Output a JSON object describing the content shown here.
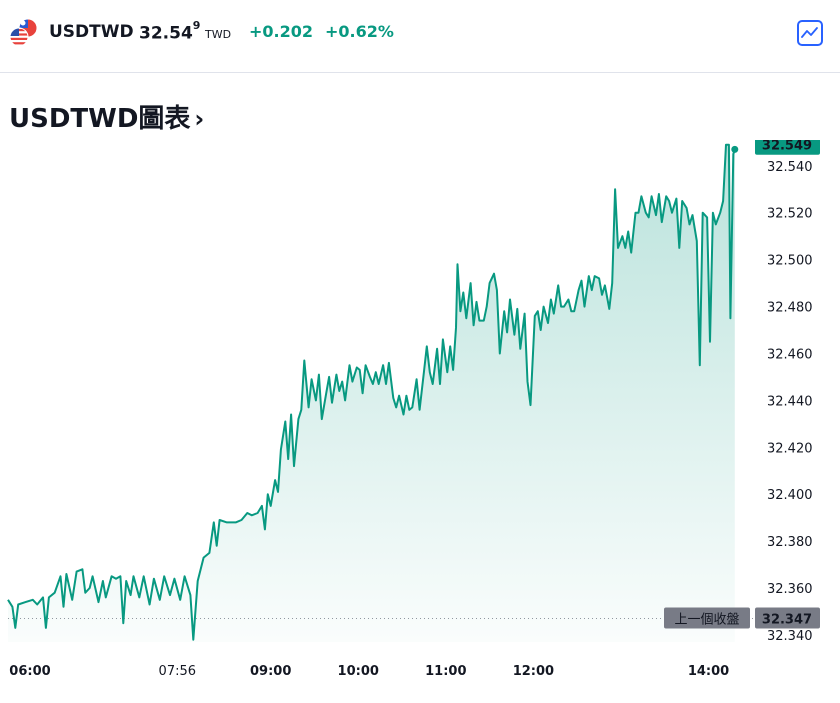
{
  "header": {
    "symbol": "USDTWD",
    "price_main": "32.54",
    "price_small": "9",
    "currency": "TWD",
    "change": "+0.202",
    "change_pct": "+0.62%",
    "chart_button_icon": "line-chart-icon",
    "flag_icon": "us-tw-flag-icon"
  },
  "section": {
    "title": "USDTWD圖表",
    "chevron": "›"
  },
  "colors": {
    "line": "#089981",
    "up": "#089981",
    "prev_close_label_bg": "#787b86",
    "accent": "#2962ff"
  },
  "chart_data": {
    "type": "area",
    "x_labels": [
      "06:00",
      "07:56",
      "09:00",
      "10:00",
      "11:00",
      "12:00",
      "14:00"
    ],
    "y_ticks": [
      32.34,
      32.36,
      32.38,
      32.4,
      32.42,
      32.44,
      32.46,
      32.48,
      32.5,
      32.52,
      32.54
    ],
    "ylim": [
      32.337,
      32.551
    ],
    "xlim": [
      "06:00",
      "14:25"
    ],
    "last_price": 32.549,
    "last_price_label": "32.549",
    "previous_close": 32.347,
    "previous_close_label": "上一個收盤",
    "previous_close_value_label": "32.347",
    "series": [
      {
        "points": [
          [
            "06:00",
            32.355
          ],
          [
            "06:03",
            32.352
          ],
          [
            "06:05",
            32.343
          ],
          [
            "06:07",
            32.353
          ],
          [
            "06:12",
            32.354
          ],
          [
            "06:17",
            32.355
          ],
          [
            "06:20",
            32.353
          ],
          [
            "06:24",
            32.356
          ],
          [
            "06:26",
            32.343
          ],
          [
            "06:28",
            32.356
          ],
          [
            "06:32",
            32.358
          ],
          [
            "06:36",
            32.365
          ],
          [
            "06:38",
            32.352
          ],
          [
            "06:40",
            32.366
          ],
          [
            "06:44",
            32.355
          ],
          [
            "06:47",
            32.367
          ],
          [
            "06:51",
            32.368
          ],
          [
            "06:53",
            32.358
          ],
          [
            "06:56",
            32.36
          ],
          [
            "06:58",
            32.365
          ],
          [
            "07:02",
            32.354
          ],
          [
            "07:05",
            32.363
          ],
          [
            "07:07",
            32.356
          ],
          [
            "07:11",
            32.365
          ],
          [
            "07:14",
            32.364
          ],
          [
            "07:17",
            32.365
          ],
          [
            "07:19",
            32.345
          ],
          [
            "07:21",
            32.363
          ],
          [
            "07:24",
            32.357
          ],
          [
            "07:26",
            32.365
          ],
          [
            "07:30",
            32.356
          ],
          [
            "07:33",
            32.365
          ],
          [
            "07:37",
            32.353
          ],
          [
            "07:40",
            32.364
          ],
          [
            "07:44",
            32.355
          ],
          [
            "07:47",
            32.365
          ],
          [
            "07:51",
            32.357
          ],
          [
            "07:54",
            32.364
          ],
          [
            "07:58",
            32.355
          ],
          [
            "08:01",
            32.365
          ],
          [
            "08:05",
            32.357
          ],
          [
            "08:07",
            32.338
          ],
          [
            "08:10",
            32.363
          ],
          [
            "08:14",
            32.373
          ],
          [
            "08:18",
            32.375
          ],
          [
            "08:21",
            32.388
          ],
          [
            "08:23",
            32.378
          ],
          [
            "08:25",
            32.389
          ],
          [
            "08:30",
            32.388
          ],
          [
            "08:36",
            32.388
          ],
          [
            "08:40",
            32.389
          ],
          [
            "08:44",
            32.392
          ],
          [
            "08:47",
            32.391
          ],
          [
            "08:51",
            32.392
          ],
          [
            "08:54",
            32.395
          ],
          [
            "08:56",
            32.385
          ],
          [
            "08:58",
            32.4
          ],
          [
            "09:00",
            32.395
          ],
          [
            "09:03",
            32.406
          ],
          [
            "09:05",
            32.401
          ],
          [
            "09:07",
            32.419
          ],
          [
            "09:10",
            32.431
          ],
          [
            "09:12",
            32.415
          ],
          [
            "09:14",
            32.434
          ],
          [
            "09:16",
            32.412
          ],
          [
            "09:19",
            32.432
          ],
          [
            "09:21",
            32.436
          ],
          [
            "09:23",
            32.457
          ],
          [
            "09:26",
            32.437
          ],
          [
            "09:28",
            32.449
          ],
          [
            "09:31",
            32.44
          ],
          [
            "09:33",
            32.451
          ],
          [
            "09:35",
            32.432
          ],
          [
            "09:38",
            32.443
          ],
          [
            "09:40",
            32.45
          ],
          [
            "09:42",
            32.439
          ],
          [
            "09:45",
            32.451
          ],
          [
            "09:47",
            32.444
          ],
          [
            "09:49",
            32.448
          ],
          [
            "09:51",
            32.44
          ],
          [
            "09:54",
            32.455
          ],
          [
            "09:56",
            32.448
          ],
          [
            "09:59",
            32.454
          ],
          [
            "10:01",
            32.453
          ],
          [
            "10:03",
            32.443
          ],
          [
            "10:05",
            32.455
          ],
          [
            "10:08",
            32.45
          ],
          [
            "10:10",
            32.447
          ],
          [
            "10:12",
            32.452
          ],
          [
            "10:14",
            32.447
          ],
          [
            "10:17",
            32.455
          ],
          [
            "10:19",
            32.447
          ],
          [
            "10:21",
            32.456
          ],
          [
            "10:24",
            32.441
          ],
          [
            "10:26",
            32.437
          ],
          [
            "10:28",
            32.442
          ],
          [
            "10:31",
            32.434
          ],
          [
            "10:33",
            32.442
          ],
          [
            "10:35",
            32.436
          ],
          [
            "10:37",
            32.437
          ],
          [
            "10:40",
            32.449
          ],
          [
            "10:42",
            32.436
          ],
          [
            "10:45",
            32.452
          ],
          [
            "10:47",
            32.463
          ],
          [
            "10:49",
            32.452
          ],
          [
            "10:51",
            32.447
          ],
          [
            "10:54",
            32.462
          ],
          [
            "10:56",
            32.447
          ],
          [
            "10:58",
            32.466
          ],
          [
            "11:01",
            32.452
          ],
          [
            "11:03",
            32.463
          ],
          [
            "11:05",
            32.453
          ],
          [
            "11:07",
            32.471
          ],
          [
            "11:08",
            32.498
          ],
          [
            "11:10",
            32.478
          ],
          [
            "11:12",
            32.486
          ],
          [
            "11:14",
            32.475
          ],
          [
            "11:17",
            32.49
          ],
          [
            "11:19",
            32.472
          ],
          [
            "11:21",
            32.482
          ],
          [
            "11:23",
            32.474
          ],
          [
            "11:26",
            32.474
          ],
          [
            "11:28",
            32.48
          ],
          [
            "11:30",
            32.49
          ],
          [
            "11:33",
            32.494
          ],
          [
            "11:35",
            32.487
          ],
          [
            "11:37",
            32.46
          ],
          [
            "11:40",
            32.478
          ],
          [
            "11:42",
            32.469
          ],
          [
            "11:44",
            32.483
          ],
          [
            "11:47",
            32.468
          ],
          [
            "11:49",
            32.479
          ],
          [
            "11:51",
            32.462
          ],
          [
            "11:54",
            32.477
          ],
          [
            "11:56",
            32.448
          ],
          [
            "11:58",
            32.438
          ],
          [
            "12:01",
            32.476
          ],
          [
            "12:03",
            32.478
          ],
          [
            "12:05",
            32.47
          ],
          [
            "12:07",
            32.48
          ],
          [
            "12:10",
            32.473
          ],
          [
            "12:12",
            32.483
          ],
          [
            "12:14",
            32.477
          ],
          [
            "12:17",
            32.489
          ],
          [
            "12:19",
            32.48
          ],
          [
            "12:21",
            32.48
          ],
          [
            "12:24",
            32.483
          ],
          [
            "12:26",
            32.478
          ],
          [
            "12:28",
            32.478
          ],
          [
            "12:31",
            32.487
          ],
          [
            "12:33",
            32.491
          ],
          [
            "12:35",
            32.48
          ],
          [
            "12:38",
            32.493
          ],
          [
            "12:40",
            32.487
          ],
          [
            "12:42",
            32.493
          ],
          [
            "12:45",
            32.492
          ],
          [
            "12:47",
            32.485
          ],
          [
            "12:49",
            32.489
          ],
          [
            "12:52",
            32.479
          ],
          [
            "12:54",
            32.49
          ],
          [
            "12:56",
            32.53
          ],
          [
            "12:58",
            32.505
          ],
          [
            "13:01",
            32.51
          ],
          [
            "13:03",
            32.505
          ],
          [
            "13:05",
            32.512
          ],
          [
            "13:07",
            32.503
          ],
          [
            "13:10",
            32.52
          ],
          [
            "13:12",
            32.52
          ],
          [
            "13:14",
            32.527
          ],
          [
            "13:17",
            32.52
          ],
          [
            "13:19",
            32.518
          ],
          [
            "13:21",
            32.527
          ],
          [
            "13:24",
            32.519
          ],
          [
            "13:26",
            32.528
          ],
          [
            "13:28",
            32.516
          ],
          [
            "13:31",
            32.527
          ],
          [
            "13:33",
            32.525
          ],
          [
            "13:35",
            32.52
          ],
          [
            "13:38",
            32.526
          ],
          [
            "13:40",
            32.505
          ],
          [
            "13:42",
            32.525
          ],
          [
            "13:45",
            32.522
          ],
          [
            "13:47",
            32.515
          ],
          [
            "13:49",
            32.519
          ],
          [
            "13:52",
            32.508
          ],
          [
            "13:54",
            32.455
          ],
          [
            "13:56",
            32.52
          ],
          [
            "13:59",
            32.518
          ],
          [
            "14:01",
            32.465
          ],
          [
            "14:03",
            32.52
          ],
          [
            "14:05",
            32.515
          ],
          [
            "14:08",
            32.52
          ],
          [
            "14:10",
            32.525
          ],
          [
            "14:12",
            32.549
          ],
          [
            "14:14",
            32.549
          ],
          [
            "14:15",
            32.475
          ],
          [
            "14:17",
            32.545
          ],
          [
            "14:18",
            32.547
          ]
        ]
      }
    ]
  }
}
